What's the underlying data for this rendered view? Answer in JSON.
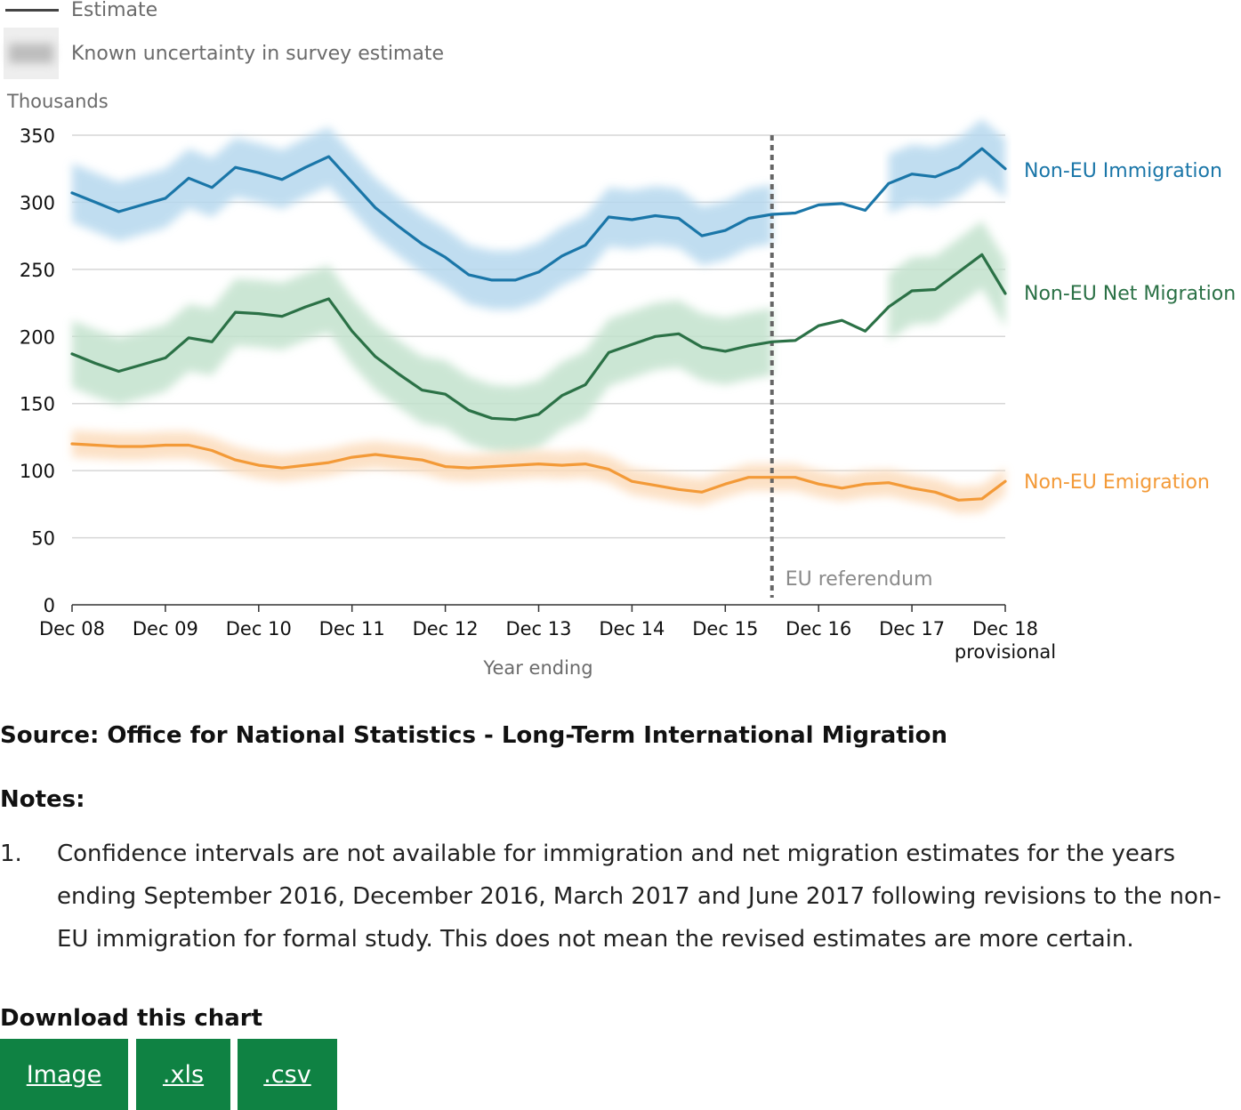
{
  "legend": {
    "estimate_label": "Estimate",
    "uncertainty_label": "Known uncertainty in survey estimate"
  },
  "chart_data": {
    "type": "line",
    "ylabel": "Thousands",
    "xlabel": "Year ending",
    "ylim": [
      0,
      350
    ],
    "yticks": [
      0,
      50,
      100,
      150,
      200,
      250,
      300,
      350
    ],
    "grid": true,
    "x_tick_labels": [
      "Dec 08",
      "Dec 09",
      "Dec 10",
      "Dec 11",
      "Dec 12",
      "Dec 13",
      "Dec 14",
      "Dec 15",
      "Dec 16",
      "Dec 17",
      "Dec 18"
    ],
    "x_tick_sublabel": "provisional",
    "x": [
      "Dec 08",
      "Mar 09",
      "Jun 09",
      "Sep 09",
      "Dec 09",
      "Mar 10",
      "Jun 10",
      "Sep 10",
      "Dec 10",
      "Mar 11",
      "Jun 11",
      "Sep 11",
      "Dec 11",
      "Mar 12",
      "Jun 12",
      "Sep 12",
      "Dec 12",
      "Mar 13",
      "Jun 13",
      "Sep 13",
      "Dec 13",
      "Mar 14",
      "Jun 14",
      "Sep 14",
      "Dec 14",
      "Mar 15",
      "Jun 15",
      "Sep 15",
      "Dec 15",
      "Mar 16",
      "Jun 16",
      "Sep 16",
      "Dec 16",
      "Mar 17",
      "Jun 17",
      "Sep 17",
      "Dec 17",
      "Mar 18",
      "Jun 18",
      "Sep 18",
      "Dec 18"
    ],
    "reference_line": {
      "x": "Jun 16",
      "label": "EU referendum"
    },
    "colors": {
      "grid": "#d6d6d6",
      "axis": "#333333",
      "reference": "#666666",
      "reference_label": "#8a8a8a"
    },
    "series": [
      {
        "name": "Non-EU Immigration",
        "color": "#1a76a8",
        "band": "#b6d8ee",
        "values": [
          307,
          300,
          293,
          298,
          303,
          318,
          311,
          326,
          322,
          317,
          326,
          334,
          315,
          296,
          282,
          269,
          259,
          246,
          242,
          242,
          248,
          260,
          268,
          289,
          287,
          290,
          288,
          275,
          279,
          288,
          291,
          292,
          298,
          299,
          294,
          314,
          321,
          319,
          326,
          340,
          325
        ],
        "uncertainty": [
          22,
          22,
          22,
          22,
          22,
          22,
          22,
          22,
          22,
          22,
          22,
          22,
          22,
          22,
          22,
          22,
          22,
          22,
          22,
          22,
          22,
          22,
          22,
          22,
          22,
          22,
          22,
          22,
          22,
          22,
          22,
          null,
          null,
          null,
          null,
          22,
          22,
          22,
          22,
          22,
          22
        ]
      },
      {
        "name": "Non-EU Net Migration",
        "color": "#2b7146",
        "band": "#c3e2cd",
        "values": [
          187,
          180,
          174,
          179,
          184,
          199,
          196,
          218,
          217,
          215,
          222,
          228,
          204,
          185,
          172,
          160,
          157,
          145,
          139,
          138,
          142,
          156,
          164,
          188,
          194,
          200,
          202,
          192,
          189,
          193,
          196,
          197,
          208,
          212,
          204,
          222,
          234,
          235,
          248,
          261,
          232
        ],
        "uncertainty": [
          25,
          25,
          25,
          25,
          25,
          25,
          25,
          25,
          25,
          25,
          25,
          25,
          25,
          25,
          25,
          25,
          25,
          25,
          25,
          25,
          25,
          25,
          25,
          25,
          25,
          25,
          25,
          25,
          25,
          25,
          25,
          null,
          null,
          null,
          null,
          25,
          25,
          25,
          25,
          25,
          25
        ]
      },
      {
        "name": "Non-EU Emigration",
        "color": "#f39a38",
        "band": "#fcdcbc",
        "values": [
          120,
          119,
          118,
          118,
          119,
          119,
          115,
          108,
          104,
          102,
          104,
          106,
          110,
          112,
          110,
          108,
          103,
          102,
          103,
          104,
          105,
          104,
          105,
          101,
          92,
          89,
          86,
          84,
          90,
          95,
          95,
          95,
          90,
          87,
          90,
          91,
          87,
          84,
          78,
          79,
          92
        ],
        "uncertainty": [
          10,
          10,
          10,
          10,
          10,
          10,
          10,
          10,
          10,
          10,
          10,
          10,
          10,
          10,
          10,
          10,
          10,
          10,
          10,
          10,
          10,
          10,
          10,
          10,
          10,
          10,
          10,
          10,
          10,
          10,
          10,
          10,
          10,
          10,
          10,
          10,
          10,
          10,
          10,
          10,
          10
        ]
      }
    ]
  },
  "source": "Source: Office for National Statistics - Long-Term International Migration",
  "notes": {
    "heading": "Notes:",
    "items": [
      {
        "number": "1.",
        "text": "Confidence intervals are not available for immigration and net migration estimates for the years ending September 2016, December 2016, March 2017 and June 2017 following revisions to the non-EU immigration for formal study. This does not mean the revised estimates are more certain."
      }
    ]
  },
  "download": {
    "heading": "Download this chart",
    "buttons": [
      ".xls",
      ".csv"
    ],
    "image_label": "Image",
    "xls_label": ".xls",
    "csv_label": ".csv",
    "button_color": "#0f8243"
  }
}
